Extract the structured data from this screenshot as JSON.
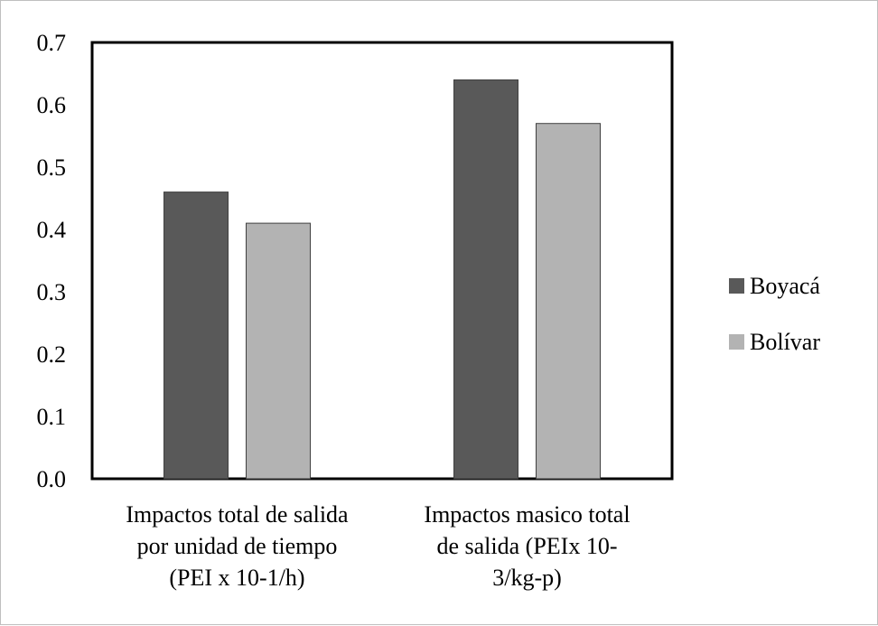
{
  "chart_data": {
    "type": "bar",
    "title": "",
    "xlabel": "",
    "ylabel": "",
    "categories": [
      [
        "Impactos total de salida",
        "por unidad de tiempo",
        "(PEI x 10-1/h)"
      ],
      [
        "Impactos masico total",
        "de salida (PEIx 10-",
        "3/kg-p)"
      ]
    ],
    "series": [
      {
        "name": "Boyacá",
        "values": [
          0.46,
          0.64
        ],
        "color": "#595959"
      },
      {
        "name": "Bolívar",
        "values": [
          0.41,
          0.57
        ],
        "color": "#b3b3b3"
      }
    ],
    "ylim": [
      0,
      0.7
    ],
    "yticks": [
      "0.0",
      "0.1",
      "0.2",
      "0.3",
      "0.4",
      "0.5",
      "0.6",
      "0.7"
    ],
    "grid": false,
    "legend": "right"
  }
}
